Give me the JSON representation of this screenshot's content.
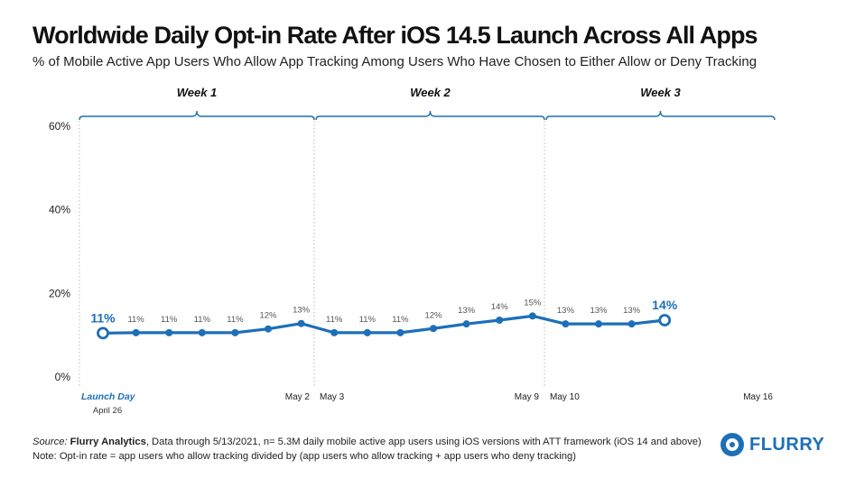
{
  "chart_data": {
    "type": "line",
    "title": "Worldwide Daily Opt-in Rate After iOS 14.5 Launch Across All Apps",
    "subtitle": "% of Mobile Active App Users Who Allow App Tracking Among Users Who Have Chosen to Either Allow or Deny Tracking",
    "ylim": [
      0,
      60
    ],
    "yticks": [
      0,
      20,
      40,
      60
    ],
    "ytick_labels": [
      "0%",
      "20%",
      "40%",
      "60%"
    ],
    "grid": false,
    "series": [
      {
        "name": "Opt-in Rate",
        "color": "#1d6fb8",
        "values": [
          10.5,
          10.6,
          10.6,
          10.6,
          10.6,
          11.5,
          12.8,
          10.6,
          10.6,
          10.6,
          11.6,
          12.7,
          13.6,
          14.6,
          12.7,
          12.7,
          12.7,
          13.6
        ],
        "labels": [
          "11%",
          "11%",
          "11%",
          "11%",
          "11%",
          "12%",
          "13%",
          "11%",
          "11%",
          "11%",
          "12%",
          "13%",
          "14%",
          "15%",
          "13%",
          "13%",
          "13%",
          "14%"
        ]
      }
    ],
    "x_labels": [
      {
        "index": 0,
        "text": "Launch Day",
        "sub": "April 26"
      },
      {
        "index": 6,
        "text": "May 2"
      },
      {
        "index": 7,
        "text": "May 3"
      },
      {
        "index": 13,
        "text": "May 9"
      },
      {
        "index": 14,
        "text": "May 10"
      },
      {
        "index": 20,
        "text": "May 16"
      }
    ],
    "weeks": [
      {
        "label": "Week 1",
        "start": 0,
        "end": 6
      },
      {
        "label": "Week 2",
        "start": 7,
        "end": 13
      },
      {
        "label": "Week 3",
        "start": 14,
        "end": 20
      }
    ],
    "highlight_points": [
      0,
      17
    ]
  },
  "footer": {
    "source_label": "Source:",
    "source_name": "Flurry Analytics",
    "source_text": ", Data through 5/13/2021, n= 5.3M daily mobile active app users using iOS versions with ATT framework (iOS 14 and above)",
    "note": "Note: Opt-in rate = app users who allow tracking divided by (app users who allow tracking + app users who deny tracking)"
  },
  "logo": {
    "text": "FLURRY"
  },
  "colors": {
    "accent": "#1d6fb8",
    "text": "#111111",
    "grid": "#b8b8b8"
  }
}
